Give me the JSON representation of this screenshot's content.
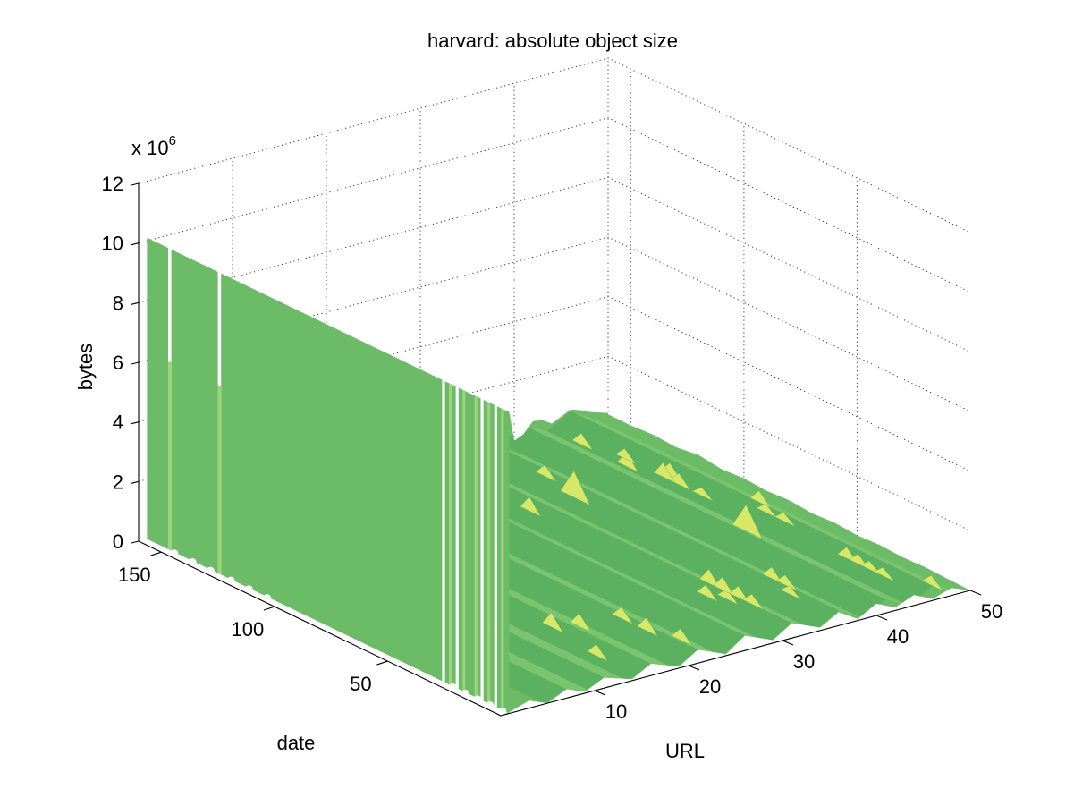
{
  "figure": {
    "background": "#ffffff"
  },
  "chart_data": {
    "type": "surface",
    "title": "harvard: absolute object size",
    "xlabel": "date",
    "ylabel": "URL",
    "zlabel": "bytes",
    "z_unit_multiplier": {
      "label": "x 10",
      "exponent": "6"
    },
    "x_range": [
      0,
      160
    ],
    "y_range": [
      0,
      50
    ],
    "z_range_e6": [
      0,
      12
    ],
    "x_ticks": [
      50,
      100,
      150
    ],
    "y_ticks": [
      10,
      20,
      30,
      40,
      50
    ],
    "z_ticks": [
      0,
      2,
      4,
      6,
      8,
      10,
      12
    ],
    "grid_style": "dotted",
    "view": "3d, az -37.5 el 30, date axis reversed (0 at front vertex)",
    "description": "Object size in bytes (x10^6) per URL (1-50) and date index (0-160). URLs 1-2 form a tall flat wall at ~10.1e6 bytes across almost all dates with brief gaps to 0; all other URLs stay below ~1e6 bytes, forming low ridges parallel to the date axis with scattered yellow spikes.",
    "wall": {
      "url_band": [
        0,
        2
      ],
      "height_e6": 10.1,
      "gap_dates_partial": [
        150,
        128
      ],
      "gap_dates_full": [
        29,
        23,
        12,
        6
      ],
      "stripe_dates": [
        26,
        20,
        14.7,
        9,
        3
      ],
      "base_gap_dates": [
        148,
        140,
        132,
        123,
        115,
        107,
        25,
        19.5,
        14,
        8.5,
        3
      ]
    },
    "back_edge_url_h": [
      [
        40,
        0
      ],
      [
        41,
        0.15
      ],
      [
        42,
        0.5
      ],
      [
        43,
        0.45
      ],
      [
        44,
        0.25
      ],
      [
        45,
        0.4
      ],
      [
        46,
        0.55
      ],
      [
        47,
        0.45
      ],
      [
        48,
        0.3
      ],
      [
        49,
        0.2
      ],
      [
        50,
        0.1
      ]
    ],
    "right_edge_date_h": [
      [
        160,
        0.05
      ],
      [
        150,
        0.05
      ],
      [
        140,
        0.1
      ],
      [
        130,
        0.05
      ],
      [
        120,
        0.15
      ],
      [
        110,
        0.05
      ],
      [
        100,
        0.1
      ],
      [
        90,
        0.05
      ],
      [
        80,
        0.1
      ],
      [
        70,
        0.03
      ],
      [
        60,
        0.08
      ],
      [
        50,
        0.02
      ],
      [
        40,
        0.06
      ],
      [
        30,
        0.02
      ],
      [
        20,
        0.05
      ],
      [
        10,
        0.02
      ],
      [
        0,
        0
      ]
    ],
    "front_edge_url_h": [
      [
        48,
        0.25
      ],
      [
        46,
        0.05
      ],
      [
        44,
        0.35
      ],
      [
        42,
        0.1
      ],
      [
        40,
        0.4
      ],
      [
        38,
        0.05
      ],
      [
        36,
        0.45
      ],
      [
        34,
        0.1
      ],
      [
        31,
        0.5
      ],
      [
        29,
        0.1
      ],
      [
        26,
        0.5
      ],
      [
        24,
        0.05
      ],
      [
        21,
        0.45
      ],
      [
        19,
        0.05
      ],
      [
        16,
        0.4
      ],
      [
        14,
        0.05
      ],
      [
        11,
        0.35
      ],
      [
        9,
        0.05
      ],
      [
        7,
        0.3
      ],
      [
        5,
        0
      ],
      [
        3,
        0.25
      ],
      [
        1,
        0.05
      ],
      [
        0,
        0
      ]
    ],
    "ridges_url_h_t0_t1": [
      [
        46,
        0.5,
        0,
        160
      ],
      [
        41,
        0.45,
        0,
        160
      ],
      [
        36,
        0.5,
        0,
        150
      ],
      [
        31,
        0.5,
        0,
        150
      ],
      [
        26,
        0.5,
        0,
        140
      ],
      [
        21,
        0.45,
        0,
        130
      ],
      [
        16,
        0.4,
        0,
        120
      ],
      [
        11,
        0.35,
        0,
        100
      ],
      [
        7,
        0.3,
        0,
        60
      ]
    ],
    "spikes_date_url_h": [
      [
        116,
        31,
        0.5
      ],
      [
        134,
        37,
        0.4
      ],
      [
        117,
        36,
        0.9
      ],
      [
        147,
        44,
        0.4
      ],
      [
        127,
        44,
        0.5
      ],
      [
        112,
        45,
        0.6
      ],
      [
        108,
        45,
        0.4
      ],
      [
        98,
        45,
        0.3
      ],
      [
        70,
        43,
        0.9
      ],
      [
        85,
        48,
        0.4
      ],
      [
        78,
        47,
        0.3
      ],
      [
        70,
        47,
        0.3
      ],
      [
        38,
        46,
        0.4
      ],
      [
        33,
        46,
        0.35
      ],
      [
        28,
        46,
        0.3
      ],
      [
        22,
        46,
        0.3
      ],
      [
        9,
        48,
        0.35
      ],
      [
        132,
        45,
        0.35
      ],
      [
        115,
        45,
        0.5
      ],
      [
        44,
        16,
        0.5
      ],
      [
        40,
        18,
        0.45
      ],
      [
        20,
        15,
        0.4
      ],
      [
        38,
        22,
        0.4
      ],
      [
        27,
        22,
        0.45
      ],
      [
        16,
        23,
        0.4
      ],
      [
        38,
        31,
        0.4
      ],
      [
        33,
        32,
        0.35
      ],
      [
        45,
        33,
        0.5
      ],
      [
        39,
        33,
        0.45
      ],
      [
        32,
        33,
        0.4
      ],
      [
        26,
        33,
        0.35
      ],
      [
        38,
        38,
        0.4
      ],
      [
        32,
        38,
        0.35
      ],
      [
        26,
        37,
        0.3
      ]
    ],
    "colors": {
      "surface": "#6cbb67",
      "ridge_light": "#7ac46f",
      "ridge_dark": "#5cb160",
      "stripe_light": "#9dd37f",
      "spike_yellow": "#d9e767",
      "grid": "#3a3a3a",
      "axis": "#000000",
      "text": "#000000",
      "background": "#ffffff"
    }
  }
}
